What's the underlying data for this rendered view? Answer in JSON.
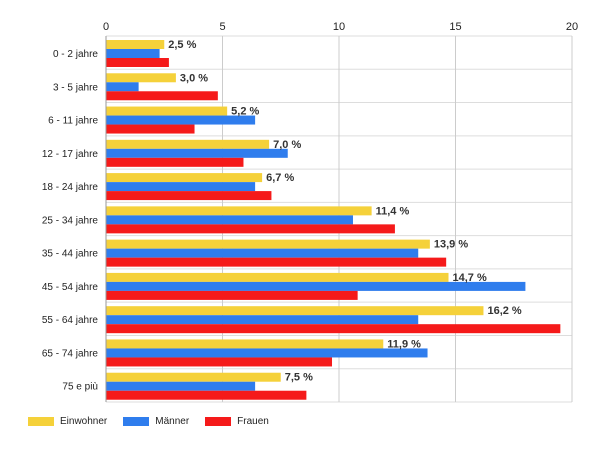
{
  "chart_data": {
    "type": "bar",
    "orientation": "horizontal",
    "categories": [
      "0 - 2 jahre",
      "3 - 5 jahre",
      "6 - 11 jahre",
      "12 - 17 jahre",
      "18 - 24 jahre",
      "25 - 34 jahre",
      "35 - 44 jahre",
      "45 - 54 jahre",
      "55 - 64 jahre",
      "65 - 74 jahre",
      "75 e più"
    ],
    "series": [
      {
        "name": "Einwohner",
        "color": "#f5d13a",
        "values": [
          2.5,
          3.0,
          5.2,
          7.0,
          6.7,
          11.4,
          13.9,
          14.7,
          16.2,
          11.9,
          7.5
        ]
      },
      {
        "name": "Männer",
        "color": "#2f7ded",
        "values": [
          2.3,
          1.4,
          6.4,
          7.8,
          6.4,
          10.6,
          13.4,
          18.0,
          13.4,
          13.8,
          6.4
        ]
      },
      {
        "name": "Frauen",
        "color": "#f51a1a",
        "values": [
          2.7,
          4.8,
          3.8,
          5.9,
          7.1,
          12.4,
          14.6,
          10.8,
          19.5,
          9.7,
          8.6
        ]
      }
    ],
    "data_labels": [
      "2,5 %",
      "3,0 %",
      "5,2 %",
      "7,0 %",
      "6,7 %",
      "11,4 %",
      "13,9 %",
      "14,7 %",
      "16,2 %",
      "11,9 %",
      "7,5 %"
    ],
    "xlim": [
      0,
      20
    ],
    "xticks": [
      "0",
      "5",
      "10",
      "15",
      "20"
    ],
    "axis_position": "top",
    "grid": true,
    "legend_position": "bottom-left"
  }
}
